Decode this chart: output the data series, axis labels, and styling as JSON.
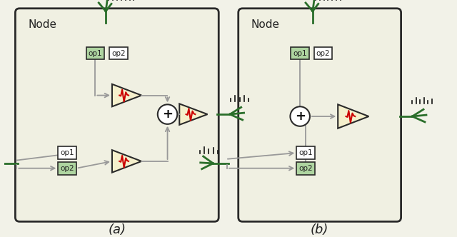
{
  "bg_color": "#f2f2e8",
  "node_bg": "#f0f0e2",
  "node_border": "#2a2a2a",
  "green_color": "#2a6e2a",
  "gray_color": "#999999",
  "red_color": "#cc0000",
  "op1_fill_green": "#aed4a0",
  "op2_fill_white": "#ffffff",
  "triangle_fill": "#f5f0cc",
  "triangle_border": "#2a2a2a",
  "label_a": "(a)",
  "label_b": "(b)",
  "node_label": "Node",
  "spike_color": "#111111"
}
